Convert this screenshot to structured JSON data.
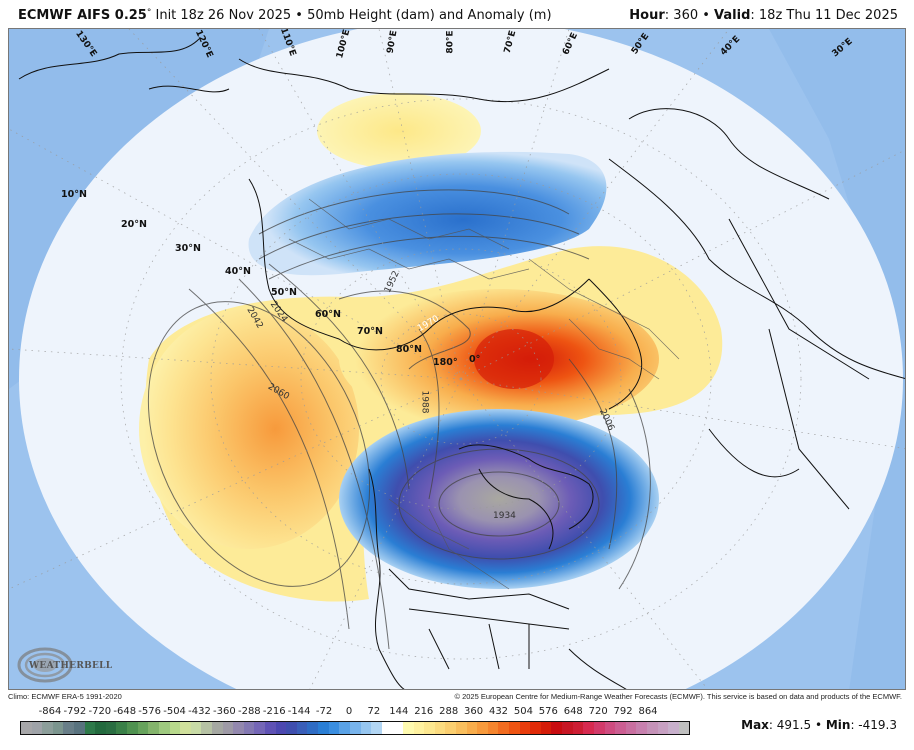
{
  "header": {
    "model_name": "ECMWF AIFS 0.25",
    "degree_symbol": "°",
    "init_text": " Init 18z 26 Nov 2025",
    "separator": " • ",
    "product": "50mb Height (dam) and Anomaly (m)",
    "hour_label": "Hour",
    "hour_value": ": 360",
    "valid_label": "Valid",
    "valid_value": ": 18z Thu 11 Dec 2025"
  },
  "map": {
    "latitude_labels": [
      "10°N",
      "20°N",
      "30°N",
      "40°N",
      "50°N",
      "60°N",
      "70°N",
      "80°N"
    ],
    "longitude_labels": [
      "130°E",
      "120°E",
      "110°E",
      "100°E",
      "90°E",
      "80°E",
      "70°E",
      "60°E",
      "50°E",
      "40°E",
      "30°E",
      "180°",
      "0°"
    ],
    "contour_labels": [
      "1952",
      "1970",
      "1988",
      "2006",
      "2024",
      "2042",
      "2060",
      "1934"
    ],
    "logo_text": "WEATHERBELL",
    "colors": {
      "background_blue": "#9cc3ee",
      "ring_white": "#eef4fc",
      "positive_yellow": "#fbee9a",
      "positive_orange": "#f89a3c",
      "positive_red": "#e8320c",
      "negative_blue": "#4a90e0",
      "negative_purple": "#5a4fb8",
      "negative_gray": "#a9a8a0"
    }
  },
  "credits": {
    "climo": "Climo: ECMWF ERA-5 1991-2020",
    "copyright": "© 2025 European Centre for Medium-Range Weather Forecasts (ECMWF). This service is based on data and products of the ECMWF."
  },
  "colorbar": {
    "ticks": [
      "-864",
      "-792",
      "-720",
      "-648",
      "-576",
      "-504",
      "-432",
      "-360",
      "-288",
      "-216",
      "-144",
      "-72",
      "0",
      "72",
      "144",
      "216",
      "288",
      "360",
      "432",
      "504",
      "576",
      "648",
      "720",
      "792",
      "864"
    ],
    "colors": [
      "#a7a7a9",
      "#9fa3a8",
      "#8c9e9a",
      "#7b958e",
      "#687e88",
      "#59737f",
      "#2e7a4a",
      "#236a3e",
      "#2a6e42",
      "#3a8048",
      "#4f9250",
      "#67a35c",
      "#84b46c",
      "#9ec97f",
      "#b8d98c",
      "#d0e09c",
      "#c8dba6",
      "#b6c2a4",
      "#a5a8a2",
      "#9e9aa6",
      "#9388ae",
      "#8378b2",
      "#7466b6",
      "#5f52b4",
      "#4c48b0",
      "#3f4eae",
      "#3a5eb8",
      "#2f6cc4",
      "#2a7ed4",
      "#3a8ee0",
      "#5aa2e6",
      "#78b4ec",
      "#96c6f0",
      "#b2d6f4",
      "#ffffff",
      "#ffffff",
      "#fffbb0",
      "#fff2a0",
      "#fde890",
      "#fcdc80",
      "#fbcf70",
      "#f9bf5e",
      "#f8ad4c",
      "#f79a3c",
      "#f5852e",
      "#f26c20",
      "#ee5412",
      "#e83c0c",
      "#e02a08",
      "#d41c08",
      "#c80c10",
      "#c71624",
      "#cd1e34",
      "#d72a50",
      "#d23a6a",
      "#cf4c80",
      "#cc5e92",
      "#c96fa0",
      "#c780ae",
      "#c592b8",
      "#c7a0c2",
      "#c8b0cc",
      "#c0c0c0"
    ]
  },
  "stats": {
    "max_label": "Max",
    "max_value": ": 491.5",
    "min_label": "Min",
    "min_value": ": -419.3",
    "separator": " • "
  }
}
